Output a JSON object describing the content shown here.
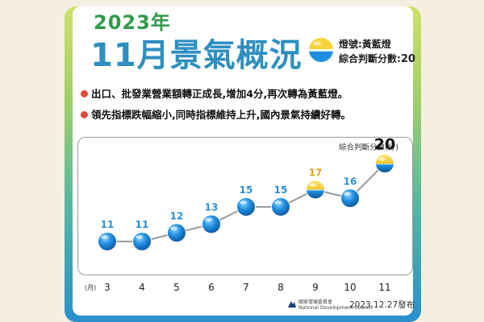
{
  "header": {
    "year": "2023年",
    "title": "11月景氣概況",
    "signal_label": "燈號:黃藍燈",
    "score_label": "綜合判斷分數:",
    "score_value": "20"
  },
  "bullets": [
    "出口、批發業營業額轉正成長,增加4分,再次轉為黃藍燈。",
    "領先指標跌幅縮小,同時指標維持上升,國內景氣持續好轉。"
  ],
  "chart_data": {
    "type": "line",
    "ylabel": "綜合判斷分數(分)",
    "xunit": "(月)",
    "categories": [
      "3",
      "4",
      "5",
      "6",
      "7",
      "8",
      "9",
      "10",
      "11"
    ],
    "values": [
      11,
      11,
      12,
      13,
      15,
      15,
      17,
      16,
      20
    ],
    "signals": [
      "blue",
      "blue",
      "blue",
      "blue",
      "blue",
      "blue",
      "yellow-blue",
      "blue",
      "yellow-blue"
    ],
    "highlight": "20",
    "ylim": [
      9,
      21
    ],
    "grid": false
  },
  "colors": {
    "blue": "#1f8fe0",
    "yellow": "#f5d43a",
    "green_title": "#2f9a4a",
    "blue_title": "#2f8fc0",
    "bullet_dot": "#e14b3b"
  },
  "footer": {
    "org_line1": "國家發展委員會",
    "org_line2": "National Development Council",
    "date": "2023.12.27發布"
  }
}
